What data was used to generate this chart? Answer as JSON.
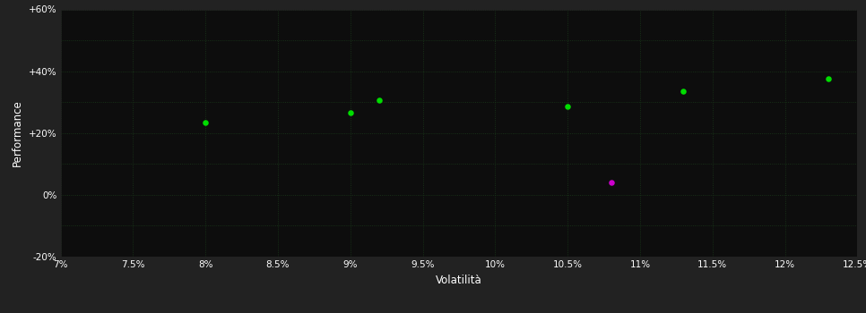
{
  "background_color": "#222222",
  "plot_bg_color": "#0d0d0d",
  "grid_color": "#1a3a1a",
  "text_color": "#ffffff",
  "xlabel": "Volatilità",
  "ylabel": "Performance",
  "xlim": [
    0.07,
    0.125
  ],
  "ylim": [
    -0.2,
    0.6
  ],
  "xticks": [
    0.07,
    0.075,
    0.08,
    0.085,
    0.09,
    0.095,
    0.1,
    0.105,
    0.11,
    0.115,
    0.12,
    0.125
  ],
  "yticks": [
    -0.2,
    -0.1,
    0.0,
    0.1,
    0.2,
    0.3,
    0.4,
    0.5,
    0.6
  ],
  "ytick_labels": [
    "-20%",
    "",
    "0%",
    "",
    "+20%",
    "",
    "+40%",
    "",
    "+60%"
  ],
  "xtick_labels": [
    "7%",
    "7.5%",
    "8%",
    "8.5%",
    "9%",
    "9.5%",
    "10%",
    "10.5%",
    "11%",
    "11.5%",
    "12%",
    "12.5%"
  ],
  "green_points": [
    [
      0.08,
      0.235
    ],
    [
      0.09,
      0.265
    ],
    [
      0.092,
      0.305
    ],
    [
      0.105,
      0.285
    ],
    [
      0.113,
      0.335
    ],
    [
      0.123,
      0.375
    ]
  ],
  "magenta_points": [
    [
      0.108,
      0.04
    ]
  ],
  "green_color": "#00dd00",
  "magenta_color": "#cc00cc",
  "marker_size": 22,
  "grid_linestyle": "dotted",
  "grid_linewidth": 0.6,
  "tick_fontsize": 7.5,
  "label_fontsize": 8.5
}
